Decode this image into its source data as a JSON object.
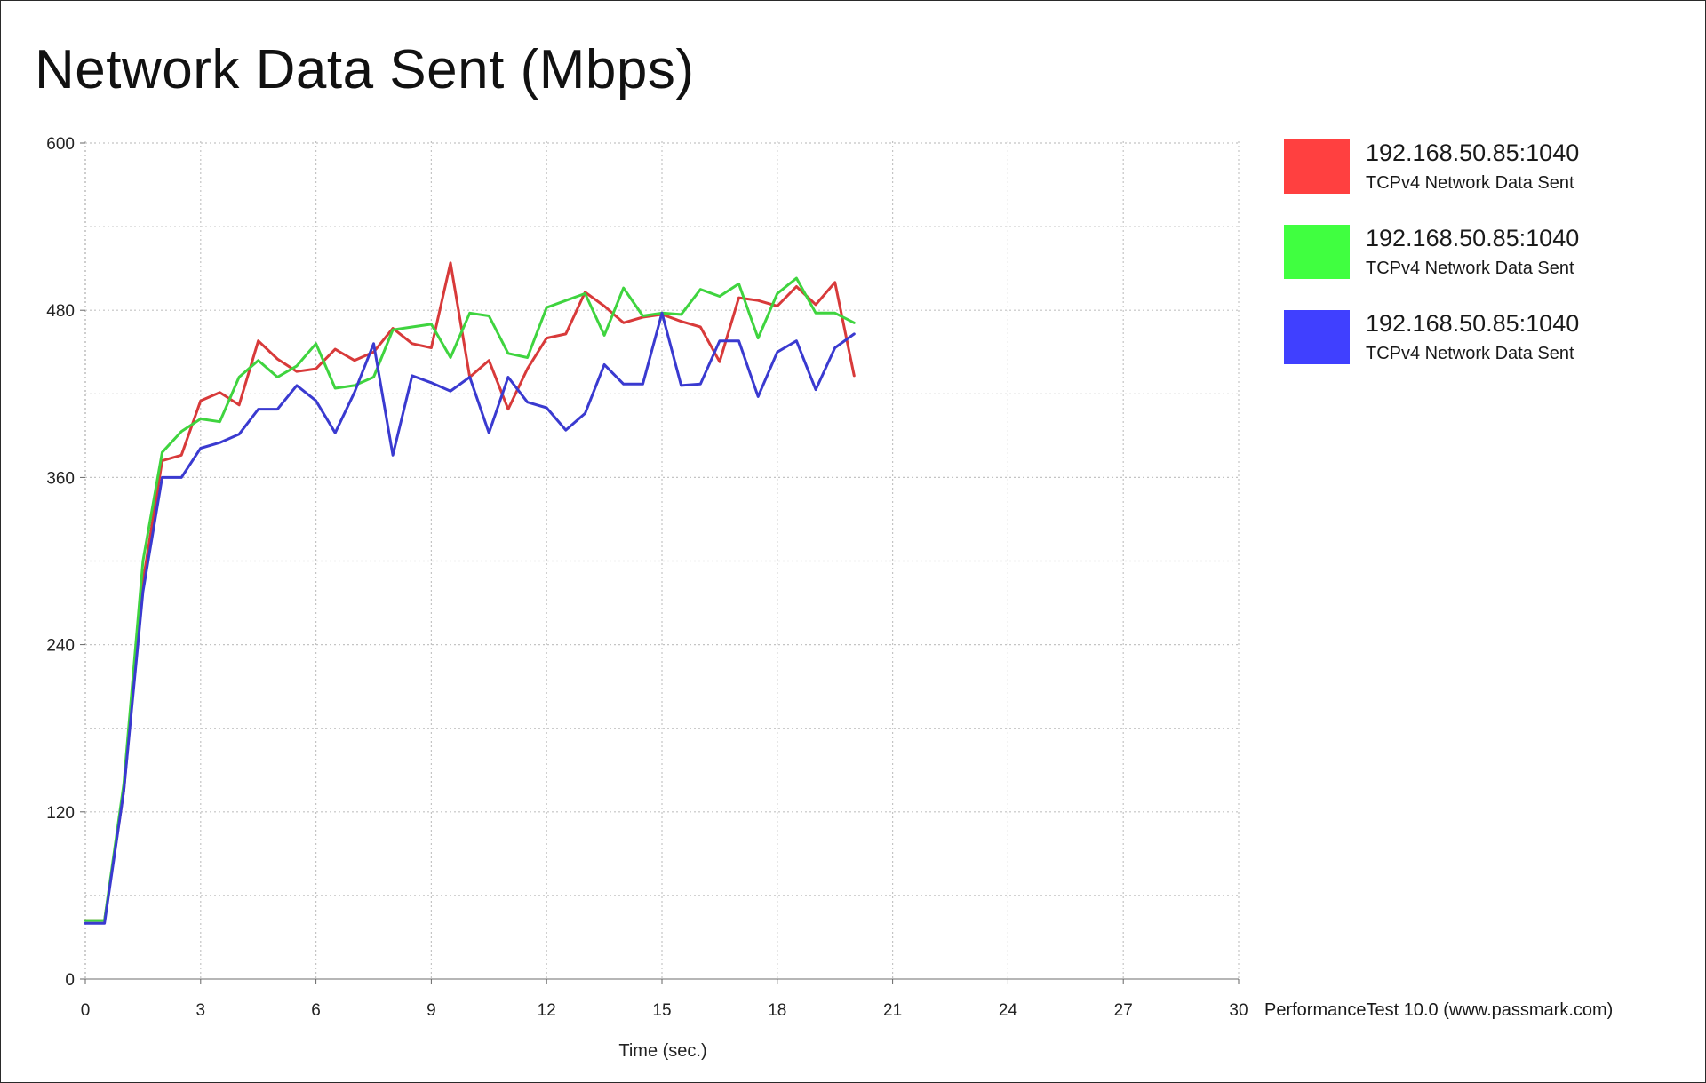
{
  "chart_data": {
    "type": "line",
    "title": "Network Data Sent (Mbps)",
    "xlabel": "Time (sec.)",
    "ylabel": "",
    "xlim": [
      0,
      30
    ],
    "ylim": [
      0,
      600
    ],
    "x_ticks": [
      0,
      3,
      6,
      9,
      12,
      15,
      18,
      21,
      24,
      27,
      30
    ],
    "y_ticks": [
      0,
      120,
      240,
      360,
      480,
      600
    ],
    "grid": true,
    "legend_position": "right",
    "series": [
      {
        "name": "192.168.50.85:1040",
        "description": "TCPv4 Network Data Sent",
        "color": "#ff4040",
        "line_color": "#d83a3a",
        "x": [
          0,
          0.5,
          1,
          1.5,
          2,
          2.5,
          3,
          3.5,
          4,
          4.5,
          5,
          5.5,
          6,
          6.5,
          7,
          7.5,
          8,
          8.5,
          9,
          9.5,
          10,
          10.5,
          11,
          11.5,
          12,
          12.5,
          13,
          13.5,
          14,
          14.5,
          15,
          15.5,
          16,
          16.5,
          17,
          17.5,
          18,
          18.5,
          19,
          19.5,
          20
        ],
        "values": [
          42,
          42,
          135,
          285,
          372,
          376,
          415,
          421,
          412,
          458,
          445,
          436,
          438,
          452,
          444,
          450,
          467,
          456,
          453,
          514,
          432,
          444,
          409,
          438,
          460,
          463,
          493,
          483,
          471,
          475,
          477,
          472,
          468,
          443,
          489,
          487,
          483,
          497,
          484,
          500,
          433
        ]
      },
      {
        "name": "192.168.50.85:1040",
        "description": "TCPv4 Network Data Sent",
        "color": "#40ff40",
        "line_color": "#3fd43f",
        "x": [
          0,
          0.5,
          1,
          1.5,
          2,
          2.5,
          3,
          3.5,
          4,
          4.5,
          5,
          5.5,
          6,
          6.5,
          7,
          7.5,
          8,
          8.5,
          9,
          9.5,
          10,
          10.5,
          11,
          11.5,
          12,
          12.5,
          13,
          13.5,
          14,
          14.5,
          15,
          15.5,
          16,
          16.5,
          17,
          17.5,
          18,
          18.5,
          19,
          19.5,
          20
        ],
        "values": [
          42,
          42,
          140,
          300,
          378,
          393,
          402,
          400,
          432,
          444,
          432,
          440,
          456,
          424,
          426,
          432,
          466,
          468,
          470,
          446,
          478,
          476,
          449,
          446,
          482,
          487,
          492,
          462,
          496,
          476,
          478,
          477,
          495,
          490,
          499,
          460,
          492,
          503,
          478,
          478,
          471
        ]
      },
      {
        "name": "192.168.50.85:1040",
        "description": "TCPv4 Network Data Sent",
        "color": "#4040ff",
        "line_color": "#3a3ad0",
        "x": [
          0,
          0.5,
          1,
          1.5,
          2,
          2.5,
          3,
          3.5,
          4,
          4.5,
          5,
          5.5,
          6,
          6.5,
          7,
          7.5,
          8,
          8.5,
          9,
          9.5,
          10,
          10.5,
          11,
          11.5,
          12,
          12.5,
          13,
          13.5,
          14,
          14.5,
          15,
          15.5,
          16,
          16.5,
          17,
          17.5,
          18,
          18.5,
          19,
          19.5,
          20
        ],
        "values": [
          40,
          40,
          135,
          278,
          360,
          360,
          381,
          385,
          391,
          409,
          409,
          426,
          415,
          392,
          421,
          456,
          376,
          433,
          428,
          422,
          432,
          392,
          432,
          414,
          410,
          394,
          406,
          441,
          427,
          427,
          478,
          426,
          427,
          458,
          458,
          418,
          450,
          458,
          423,
          453,
          463
        ]
      }
    ]
  },
  "credit": "PerformanceTest 10.0 (www.passmark.com)"
}
